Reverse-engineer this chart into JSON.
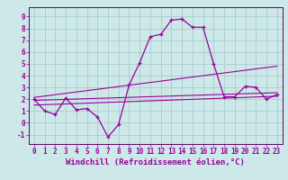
{
  "title": "",
  "xlabel": "Windchill (Refroidissement éolien,°C)",
  "bg_color": "#cce8e8",
  "grid_color": "#aacccc",
  "line_color": "#990099",
  "spine_color": "#660066",
  "xlim": [
    -0.5,
    23.5
  ],
  "ylim": [
    -1.8,
    9.8
  ],
  "xticks": [
    0,
    1,
    2,
    3,
    4,
    5,
    6,
    7,
    8,
    9,
    10,
    11,
    12,
    13,
    14,
    15,
    16,
    17,
    18,
    19,
    20,
    21,
    22,
    23
  ],
  "yticks": [
    -1,
    0,
    1,
    2,
    3,
    4,
    5,
    6,
    7,
    8,
    9
  ],
  "curve1_x": [
    0,
    1,
    2,
    3,
    4,
    5,
    6,
    7,
    8,
    9,
    10,
    11,
    12,
    13,
    14,
    15,
    16,
    17,
    18,
    19,
    20,
    21,
    22,
    23
  ],
  "curve1_y": [
    2.0,
    1.0,
    0.7,
    2.1,
    1.1,
    1.2,
    0.5,
    -1.2,
    -0.15,
    3.2,
    5.1,
    7.3,
    7.5,
    8.7,
    8.8,
    8.1,
    8.1,
    5.0,
    2.2,
    2.2,
    3.1,
    3.0,
    2.0,
    2.4
  ],
  "line2_x": [
    0,
    23
  ],
  "line2_y": [
    1.9,
    2.55
  ],
  "line3_x": [
    0,
    23
  ],
  "line3_y": [
    2.15,
    4.8
  ],
  "line4_x": [
    0,
    23
  ],
  "line4_y": [
    1.5,
    2.25
  ],
  "tick_fontsize": 5.5,
  "label_fontsize": 6.5
}
